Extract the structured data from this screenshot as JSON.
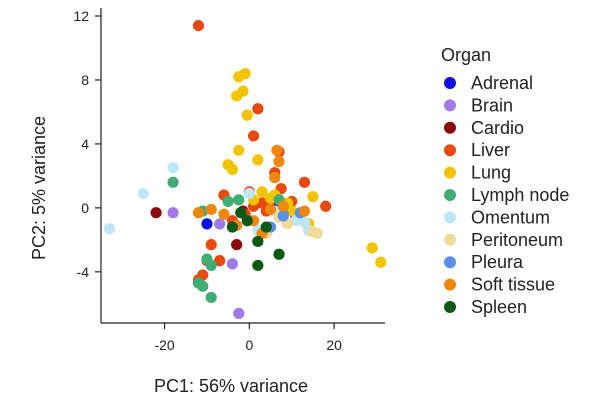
{
  "chart_data": {
    "type": "scatter",
    "xlabel": "PC1: 56% variance",
    "ylabel": "PC2: 5% variance",
    "xlim": [
      -35,
      32
    ],
    "ylim": [
      -7.2,
      12.5
    ],
    "xticks": [
      -20,
      0,
      20
    ],
    "yticks": [
      -4,
      0,
      4,
      8,
      12
    ],
    "grid": false,
    "legend_title": "Organ",
    "legend_position": "right",
    "series": [
      {
        "name": "Adrenal",
        "color": "#1010e0",
        "points": [
          [
            -10,
            -1
          ],
          [
            5,
            0
          ],
          [
            6,
            0.3
          ],
          [
            11,
            -0.5
          ]
        ]
      },
      {
        "name": "Brain",
        "color": "#a07ae8",
        "points": [
          [
            -18,
            -0.3
          ],
          [
            -7,
            -1
          ],
          [
            -4,
            -3.5
          ],
          [
            -2.5,
            -6.6
          ]
        ]
      },
      {
        "name": "Cardio",
        "color": "#8b0a0a",
        "points": [
          [
            -22,
            -0.3
          ],
          [
            -3,
            -2.3
          ],
          [
            -2,
            -0.3
          ],
          [
            -1.5,
            -0.2
          ]
        ]
      },
      {
        "name": "Liver",
        "color": "#e8490f",
        "points": [
          [
            -12,
            11.4
          ],
          [
            2,
            6.2
          ],
          [
            1,
            4.5
          ],
          [
            -10,
            -3.3
          ],
          [
            -11,
            -4.2
          ],
          [
            -9,
            -2.3
          ],
          [
            -7,
            -3.3
          ],
          [
            -6,
            0.8
          ],
          [
            -4,
            -0.8
          ],
          [
            -1,
            -0.4
          ],
          [
            0,
            1
          ],
          [
            1,
            0.1
          ],
          [
            3,
            0.3
          ],
          [
            4,
            -0.2
          ],
          [
            5,
            0.5
          ],
          [
            6,
            2.2
          ],
          [
            7,
            3.5
          ],
          [
            7.5,
            1.2
          ],
          [
            8,
            -0.2
          ],
          [
            10,
            0.4
          ],
          [
            12,
            -0.4
          ],
          [
            13,
            1.6
          ],
          [
            18,
            0.1
          ],
          [
            -12,
            -4.5
          ]
        ]
      },
      {
        "name": "Lung",
        "color": "#f5c400",
        "points": [
          [
            -2.5,
            8.2
          ],
          [
            -1,
            8.4
          ],
          [
            -3,
            7
          ],
          [
            -1.5,
            7.3
          ],
          [
            -0.5,
            5.8
          ],
          [
            -5,
            2.7
          ],
          [
            -4,
            2.4
          ],
          [
            -2.5,
            3.6
          ],
          [
            2,
            3
          ],
          [
            1,
            0.5
          ],
          [
            3,
            1
          ],
          [
            5,
            0.6
          ],
          [
            6,
            0.8
          ],
          [
            9,
            0.3
          ],
          [
            10,
            -0.2
          ],
          [
            14,
            -1
          ],
          [
            15,
            0.7
          ],
          [
            29,
            -2.5
          ],
          [
            31,
            -3.4
          ]
        ]
      },
      {
        "name": "Lymph node",
        "color": "#3fad74",
        "points": [
          [
            -18,
            1.6
          ],
          [
            -11,
            -0.2
          ],
          [
            -10,
            -3.2
          ],
          [
            -9,
            -3.6
          ],
          [
            -12,
            -4.7
          ],
          [
            -11,
            -4.9
          ],
          [
            -9,
            -5.6
          ],
          [
            -5,
            0.4
          ],
          [
            -2.5,
            0.5
          ],
          [
            7,
            0.5
          ],
          [
            8,
            -0.4
          ]
        ]
      },
      {
        "name": "Omentum",
        "color": "#bfe6f8",
        "points": [
          [
            -33,
            -1.3
          ],
          [
            -25,
            0.9
          ],
          [
            -18,
            2.5
          ],
          [
            0,
            0.9
          ],
          [
            2,
            -1.4
          ],
          [
            6,
            -0.2
          ],
          [
            11,
            -0.8
          ],
          [
            13,
            -0.9
          ],
          [
            14,
            -1.4
          ]
        ]
      },
      {
        "name": "Peritoneum",
        "color": "#f0dc9a",
        "points": [
          [
            4,
            -1.6
          ],
          [
            7,
            -0.6
          ],
          [
            9,
            -1
          ],
          [
            15,
            -1.5
          ],
          [
            16,
            -1.6
          ]
        ]
      },
      {
        "name": "Pleura",
        "color": "#5a8ee8",
        "points": [
          [
            5,
            -1.2
          ],
          [
            8,
            -0.5
          ],
          [
            12,
            -0.3
          ]
        ]
      },
      {
        "name": "Soft tissue",
        "color": "#f0870f",
        "points": [
          [
            -12,
            -0.3
          ],
          [
            -9,
            -0.1
          ],
          [
            -6,
            -0.4
          ],
          [
            -3,
            -1.1
          ],
          [
            1,
            -0.8
          ],
          [
            3,
            -1.6
          ],
          [
            5,
            -0.1
          ],
          [
            6,
            1.9
          ],
          [
            6.5,
            3.6
          ],
          [
            7,
            2.9
          ],
          [
            8,
            0.1
          ],
          [
            13,
            -0.2
          ]
        ]
      },
      {
        "name": "Spleen",
        "color": "#0a5a14",
        "points": [
          [
            -4,
            -1.2
          ],
          [
            -2,
            -0.3
          ],
          [
            -0.5,
            -0.8
          ],
          [
            2,
            -3.6
          ],
          [
            2,
            -2.1
          ],
          [
            4,
            -1.2
          ],
          [
            7,
            -2.9
          ]
        ]
      }
    ]
  }
}
